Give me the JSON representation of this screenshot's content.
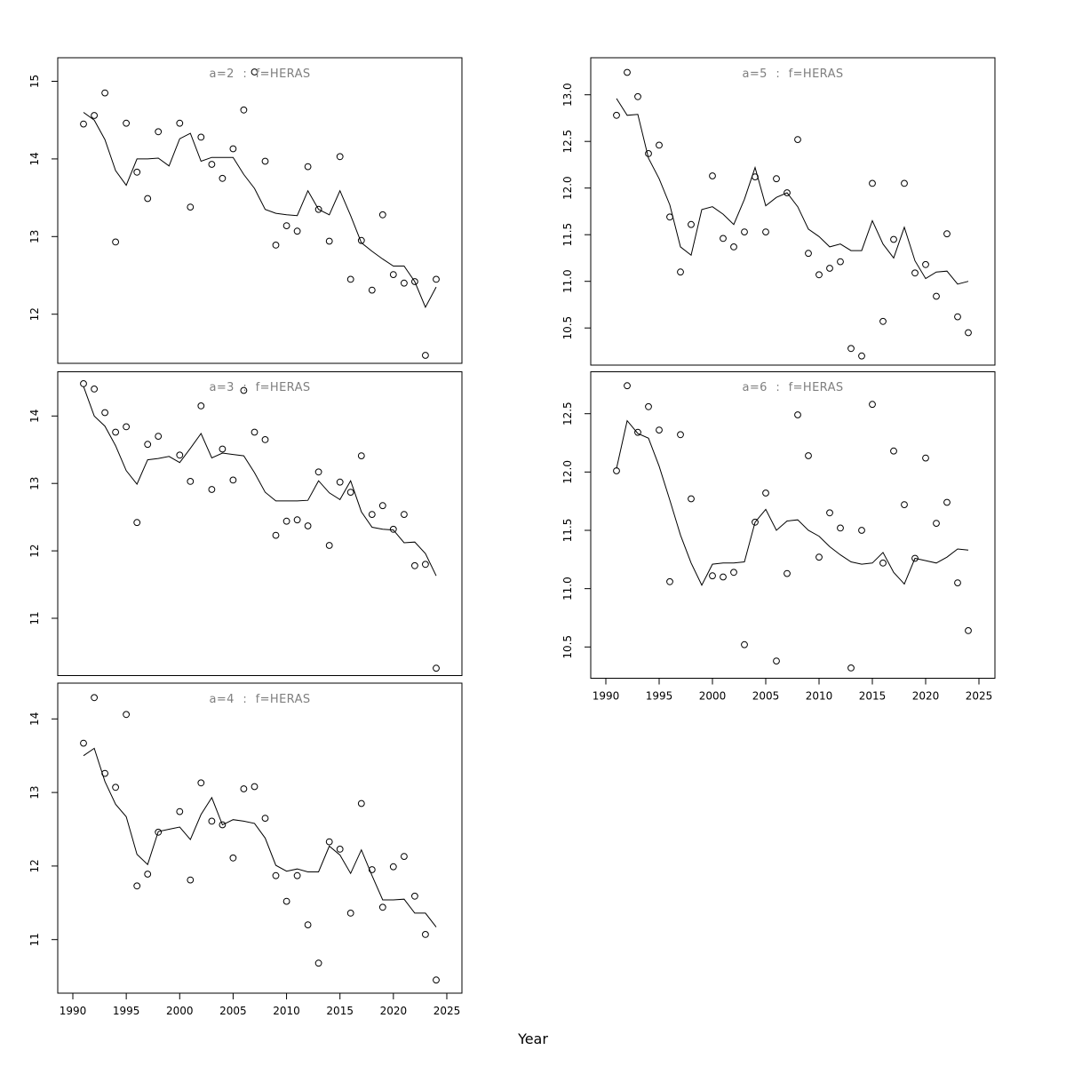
{
  "figure": {
    "background_color": "#ffffff",
    "axis_color": "#000000",
    "title_color": "#7f7f7f",
    "point_style": "open-circle",
    "line_color": "#000000"
  },
  "chart_data": {
    "type": "scatter",
    "description": "5-panel lattice of observed points (open circles) with fitted smoother lines",
    "xlabel": "Year",
    "x": [
      1991,
      1992,
      1993,
      1994,
      1995,
      1996,
      1997,
      1998,
      1999,
      2000,
      2001,
      2002,
      2003,
      2004,
      2005,
      2006,
      2007,
      2008,
      2009,
      2010,
      2011,
      2012,
      2013,
      2014,
      2015,
      2016,
      2017,
      2018,
      2019,
      2020,
      2021,
      2022,
      2023,
      2024
    ],
    "xticks": [
      1990,
      1995,
      2000,
      2005,
      2010,
      2015,
      2020,
      2025
    ],
    "xlim": [
      1988.6,
      2026.4
    ],
    "grid": false,
    "legend": null,
    "panels": [
      {
        "id": "a2",
        "title": "a=2 : f=HERAS",
        "yticks": [
          12,
          13,
          14,
          15
        ],
        "ytick_decimals": 0,
        "ylim": [
          11.2,
          15.3
        ],
        "series": [
          {
            "name": "observed",
            "type": "scatter",
            "values": [
              14.45,
              14.56,
              14.85,
              12.93,
              14.46,
              13.83,
              13.49,
              14.35,
              null,
              14.46,
              13.38,
              14.28,
              13.93,
              13.75,
              14.13,
              14.63,
              15.12,
              13.97,
              12.89,
              13.14,
              13.07,
              13.9,
              13.35,
              12.94,
              14.03,
              12.45,
              12.95,
              12.31,
              13.28,
              12.51,
              12.4,
              12.42,
              11.47,
              12.45
            ]
          },
          {
            "name": "fitted",
            "type": "line",
            "values": [
              14.6,
              14.5,
              14.25,
              13.85,
              13.66,
              14.0,
              14.0,
              14.01,
              13.91,
              14.26,
              14.33,
              13.97,
              14.02,
              14.02,
              14.02,
              13.8,
              13.62,
              13.35,
              13.3,
              13.28,
              13.27,
              13.59,
              13.35,
              13.28,
              13.59,
              13.27,
              12.92,
              12.81,
              12.71,
              12.62,
              12.62,
              12.42,
              12.09,
              12.35
            ]
          }
        ]
      },
      {
        "id": "a3",
        "title": "a=3 : f=HERAS",
        "yticks": [
          11,
          12,
          13,
          14
        ],
        "ytick_decimals": 0,
        "ylim": [
          10.1,
          14.6
        ],
        "series": [
          {
            "name": "observed",
            "type": "scatter",
            "values": [
              14.48,
              14.4,
              14.05,
              13.76,
              13.84,
              12.42,
              13.58,
              13.7,
              null,
              13.42,
              13.03,
              14.15,
              12.91,
              13.51,
              13.05,
              14.38,
              13.76,
              13.65,
              12.23,
              12.44,
              12.46,
              12.37,
              13.17,
              12.08,
              13.02,
              12.87,
              13.41,
              12.54,
              12.67,
              12.32,
              12.54,
              11.78,
              11.8,
              10.26
            ]
          },
          {
            "name": "fitted",
            "type": "line",
            "values": [
              14.44,
              14.0,
              13.85,
              13.56,
              13.19,
              12.99,
              13.35,
              13.37,
              13.4,
              13.31,
              13.52,
              13.74,
              13.38,
              13.45,
              13.43,
              13.41,
              13.16,
              12.87,
              12.74,
              12.74,
              12.74,
              12.75,
              13.04,
              12.86,
              12.76,
              13.04,
              12.58,
              12.35,
              12.32,
              12.31,
              12.12,
              12.13,
              11.96,
              11.63
            ]
          }
        ]
      },
      {
        "id": "a4",
        "title": "a=4 : f=HERAS",
        "yticks": [
          11,
          12,
          13,
          14
        ],
        "ytick_decimals": 0,
        "ylim": [
          10.3,
          14.5
        ],
        "series": [
          {
            "name": "observed",
            "type": "scatter",
            "values": [
              13.67,
              14.29,
              13.26,
              13.07,
              14.06,
              11.73,
              11.89,
              12.46,
              null,
              12.74,
              11.81,
              13.13,
              12.61,
              12.56,
              12.11,
              13.05,
              13.08,
              12.65,
              11.87,
              11.52,
              11.87,
              11.2,
              10.68,
              12.33,
              12.23,
              11.36,
              12.85,
              11.95,
              11.44,
              11.99,
              12.13,
              11.59,
              11.07,
              10.45
            ]
          },
          {
            "name": "fitted",
            "type": "line",
            "values": [
              13.5,
              13.6,
              13.15,
              12.84,
              12.67,
              12.16,
              12.02,
              12.47,
              12.5,
              12.53,
              12.36,
              12.7,
              12.93,
              12.56,
              12.63,
              12.61,
              12.58,
              12.38,
              12.01,
              11.93,
              11.96,
              11.92,
              11.92,
              12.27,
              12.15,
              11.9,
              12.22,
              11.87,
              11.54,
              11.54,
              11.55,
              11.36,
              11.36,
              11.17
            ]
          }
        ]
      },
      {
        "id": "a5",
        "title": "a=5 : f=HERAS",
        "yticks": [
          10.5,
          11.0,
          11.5,
          12.0,
          12.5,
          13.0
        ],
        "ytick_decimals": 1,
        "ylim": [
          10.0,
          13.4
        ],
        "series": [
          {
            "name": "observed",
            "type": "scatter",
            "values": [
              12.78,
              13.24,
              12.98,
              12.37,
              12.46,
              11.69,
              11.1,
              11.61,
              null,
              12.13,
              11.46,
              11.37,
              11.53,
              12.12,
              11.53,
              12.1,
              11.95,
              12.52,
              11.3,
              11.07,
              11.14,
              11.21,
              10.28,
              10.2,
              12.05,
              10.57,
              11.45,
              12.05,
              11.09,
              11.18,
              10.84,
              11.51,
              10.62,
              10.45
            ]
          },
          {
            "name": "fitted",
            "type": "line",
            "values": [
              12.96,
              12.78,
              12.79,
              12.32,
              12.1,
              11.82,
              11.37,
              11.28,
              11.77,
              11.8,
              11.72,
              11.61,
              11.88,
              12.22,
              11.81,
              11.9,
              11.95,
              11.8,
              11.56,
              11.48,
              11.37,
              11.4,
              11.33,
              11.33,
              11.65,
              11.4,
              11.25,
              11.58,
              11.22,
              11.03,
              11.1,
              11.11,
              10.97,
              11.0
            ]
          }
        ]
      },
      {
        "id": "a6",
        "title": "a=6 : f=HERAS",
        "yticks": [
          10.5,
          11.0,
          11.5,
          12.0,
          12.5
        ],
        "ytick_decimals": 1,
        "ylim": [
          10.2,
          12.9
        ],
        "series": [
          {
            "name": "observed",
            "type": "scatter",
            "values": [
              12.01,
              12.74,
              12.34,
              12.56,
              12.36,
              11.06,
              12.32,
              11.77,
              null,
              11.11,
              11.1,
              11.14,
              10.52,
              11.57,
              11.82,
              10.38,
              11.13,
              12.49,
              12.14,
              11.27,
              11.65,
              11.52,
              10.32,
              11.5,
              12.58,
              11.22,
              12.18,
              11.72,
              11.26,
              12.12,
              11.56,
              11.74,
              11.05,
              10.64
            ]
          },
          {
            "name": "fitted",
            "type": "line",
            "values": [
              12.03,
              12.44,
              12.33,
              12.29,
              12.05,
              11.76,
              11.46,
              11.22,
              11.03,
              11.21,
              11.22,
              11.22,
              11.23,
              11.57,
              11.68,
              11.5,
              11.58,
              11.59,
              11.5,
              11.45,
              11.36,
              11.29,
              11.23,
              11.21,
              11.22,
              11.31,
              11.14,
              11.04,
              11.26,
              11.24,
              11.22,
              11.27,
              11.34,
              11.33
            ]
          }
        ]
      }
    ]
  }
}
